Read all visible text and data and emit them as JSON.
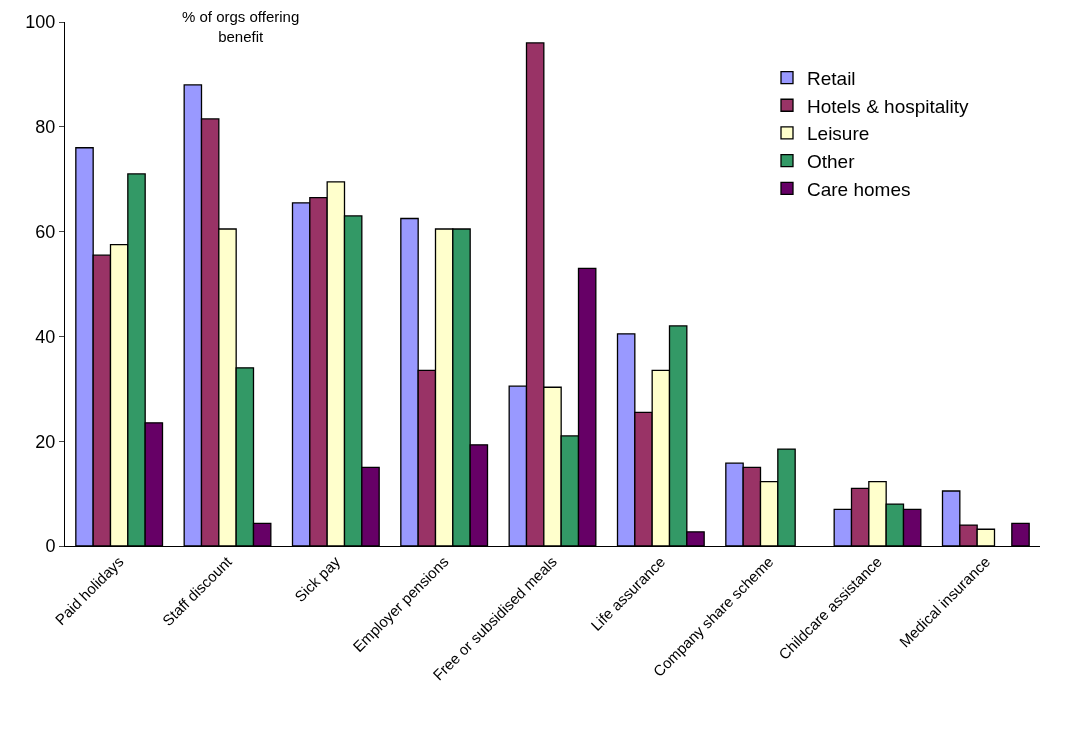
{
  "chart_data": {
    "type": "bar",
    "categories": [
      "Paid holidays",
      "Staff discount",
      "Sick pay",
      "Employer pensions",
      "Free or subsidised meals",
      "Life assurance",
      "Company share scheme",
      "Childcare assistance",
      "Medical insurance"
    ],
    "series": [
      {
        "name": "Retail",
        "color": "#9999ff",
        "values": [
          76,
          88,
          65.5,
          62.5,
          30.5,
          40.5,
          15.8,
          7,
          10.5
        ]
      },
      {
        "name": "Hotels & hospitality",
        "color": "#993366",
        "values": [
          55.5,
          81.5,
          66.5,
          33.5,
          96,
          25.5,
          15,
          11,
          4
        ]
      },
      {
        "name": "Leisure",
        "color": "#ffffcc",
        "values": [
          57.5,
          60.5,
          69.5,
          60.5,
          30.3,
          33.5,
          12.3,
          12.3,
          3.2
        ]
      },
      {
        "name": "Other",
        "color": "#339966",
        "values": [
          71,
          34,
          63,
          60.5,
          21,
          42,
          18.5,
          8,
          null
        ]
      },
      {
        "name": "Care homes",
        "color": "#660066",
        "values": [
          23.5,
          4.3,
          15,
          19.3,
          53,
          2.7,
          null,
          7,
          4.3
        ]
      }
    ],
    "ylim": [
      0,
      100
    ],
    "yticks": [
      0,
      20,
      40,
      60,
      80,
      100
    ],
    "annotations": [
      "% of orgs offering benefit"
    ],
    "legend": "top right"
  }
}
